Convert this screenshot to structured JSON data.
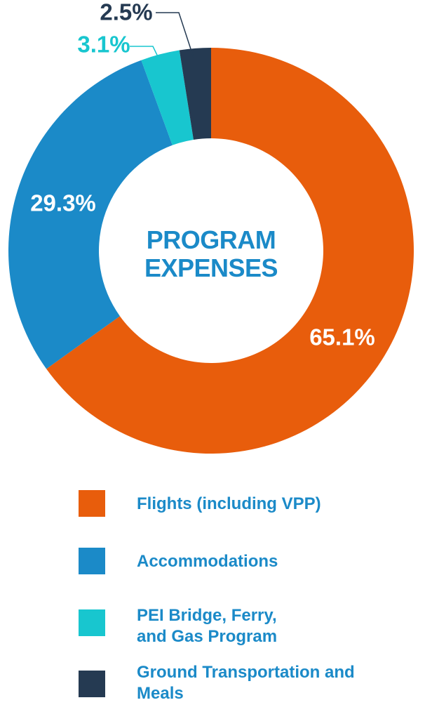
{
  "chart_data": {
    "type": "donut",
    "title": "PROGRAM EXPENSES",
    "categories": [
      "Flights (including VPP)",
      "Accommodations",
      "PEI Bridge, Ferry, and Gas Program",
      "Ground Transportation and Meals"
    ],
    "values": [
      65.1,
      29.3,
      3.1,
      2.5
    ],
    "value_labels": [
      "65.1%",
      "29.3%",
      "3.1%",
      "2.5%"
    ],
    "colors": [
      "#e85d0c",
      "#1b8ac8",
      "#18c6cf",
      "#253a52"
    ]
  }
}
